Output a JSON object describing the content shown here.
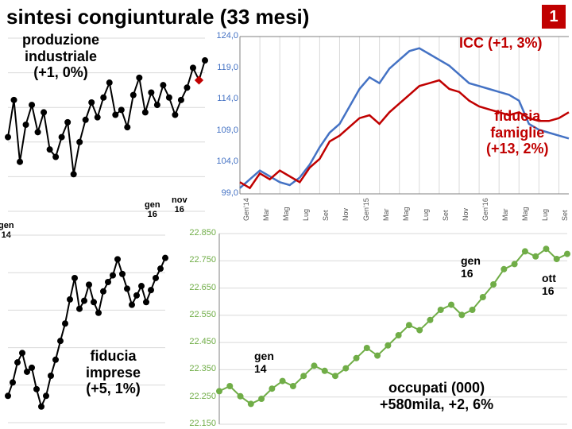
{
  "title": "sintesi congiunturale (33 mesi)",
  "page_number": "1",
  "chart_prod": {
    "label": "produzione\nindustriale\n(+1, 0%)",
    "label_color": "#000000",
    "line_color": "#000000",
    "marker_fill": "#000000",
    "marker_accent": "#c00000",
    "line_width": 2,
    "marker_size": 4,
    "x_start_label": "gen\n14",
    "x_mid_label": "gen\n16",
    "x_end_label": "nov\n16",
    "grid_color": "#d9d9d9",
    "y": [
      91,
      92.5,
      90,
      91.5,
      92.3,
      91.2,
      92,
      90.5,
      90.2,
      91,
      91.6,
      89.5,
      90.8,
      91.7,
      92.4,
      91.8,
      92.6,
      93.2,
      91.9,
      92.1,
      91.4,
      92.7,
      93.4,
      92.0,
      92.8,
      92.3,
      93.1,
      92.6,
      91.9,
      92.5,
      93.0,
      93.8,
      93.3,
      94.1
    ],
    "ymin": 88,
    "ymax": 95
  },
  "chart_imprese": {
    "label": "fiducia\nimprese\n(+5, 1%)",
    "label_color": "#000000",
    "line_color": "#000000",
    "marker_fill": "#000000",
    "line_width": 2,
    "marker_size": 4,
    "y": [
      88,
      89,
      90.5,
      91.2,
      89.8,
      90.1,
      88.5,
      87.2,
      88,
      89.5,
      90.7,
      92.1,
      93.4,
      95.2,
      96.8,
      94.5,
      95.1,
      96.3,
      95.0,
      94.2,
      95.8,
      96.5,
      97.0,
      98.2,
      97.1,
      96.0,
      94.8,
      95.5,
      96.2,
      95.0,
      95.9,
      96.8,
      97.5,
      98.3
    ],
    "ymin": 86,
    "ymax": 100
  },
  "chart_icc": {
    "label_icc": "ICC (+1, 3%)",
    "label_icc_color": "#c00000",
    "label_fam": "fiducia\nfamiglie\n(+13, 2%)",
    "label_fam_color": "#c00000",
    "series1_color": "#4472c4",
    "series2_color": "#c00000",
    "line_width": 2.5,
    "yticks": [
      "99,0",
      "104,0",
      "109,0",
      "114,0",
      "119,0",
      "124,0"
    ],
    "ytick_color": "#4472c4",
    "ymin": 99,
    "ymax": 126,
    "xticks": [
      "Gen'14",
      "Mar",
      "Mag",
      "Lug",
      "Set",
      "Nov",
      "Gen'15",
      "Mar",
      "Mag",
      "Lug",
      "Set",
      "Nov",
      "Gen'16",
      "Mar",
      "Mag",
      "Lug",
      "Set",
      "Nov"
    ],
    "series1": [
      100,
      101.5,
      103,
      102,
      101,
      100.5,
      101.8,
      104,
      107,
      109.5,
      111,
      114,
      117,
      119,
      118,
      120.5,
      122,
      123.5,
      124,
      123,
      122,
      121,
      119.5,
      118,
      117.5,
      117,
      116.5,
      116,
      115,
      111,
      110,
      109.5,
      109,
      108.5
    ],
    "series2": [
      101,
      100,
      102.5,
      101.5,
      103,
      102,
      101,
      103.5,
      105,
      108,
      109,
      110.5,
      112,
      112.5,
      111,
      113,
      114.5,
      116,
      117.5,
      118,
      118.5,
      117,
      116.5,
      115,
      114,
      113.5,
      113,
      112.5,
      113,
      112,
      111.5,
      111.5,
      112,
      113
    ]
  },
  "chart_occ": {
    "label": "occupati (000)\n+580mila, +2, 6%",
    "label_color": "#000000",
    "line_color": "#70ad47",
    "marker_fill": "#70ad47",
    "line_width": 2,
    "marker_size": 4,
    "yticks": [
      "22.150",
      "22.250",
      "22.350",
      "22.450",
      "22.550",
      "22.650",
      "22.750",
      "22.850"
    ],
    "ytick_color": "#70ad47",
    "ymin": 22150,
    "ymax": 22900,
    "x_start_label": "gen\n14",
    "x_mid_label": "gen\n16",
    "x_end_label": "ott\n16",
    "y": [
      22280,
      22300,
      22260,
      22230,
      22250,
      22290,
      22320,
      22300,
      22340,
      22380,
      22360,
      22340,
      22370,
      22410,
      22450,
      22420,
      22460,
      22500,
      22540,
      22520,
      22560,
      22600,
      22620,
      22580,
      22600,
      22650,
      22700,
      22760,
      22780,
      22830,
      22810,
      22840,
      22800,
      22820
    ]
  },
  "grid_color": "#d9d9d9",
  "axis_color": "#808080"
}
